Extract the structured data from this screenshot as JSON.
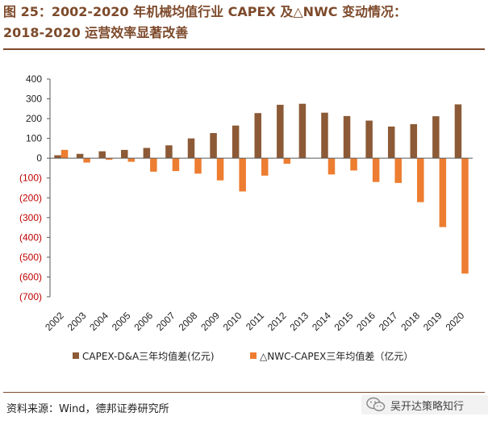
{
  "header": {
    "title_line1": "图 25：2002-2020 年机械均值行业 CAPEX 及△NWC 变动情况：",
    "title_line2": "2018-2020 运营效率显著改善"
  },
  "footer": {
    "source": "资料来源：Wind，德邦证券研究所",
    "watermark": "吴开达策略知行"
  },
  "colors": {
    "capex": "#8c5a36",
    "nwc": "#ed7d31",
    "title": "#7d4a2b",
    "tick_negative": "#c00000",
    "axis": "#595959"
  },
  "chart_data": {
    "type": "bar",
    "title": "",
    "xlabel": "",
    "ylabel": "",
    "ylim": [
      -700,
      400
    ],
    "yticks": [
      400,
      300,
      200,
      100,
      0,
      -100,
      -200,
      -300,
      -400,
      -500,
      -600,
      -700
    ],
    "ytick_labels": [
      "400",
      "300",
      "200",
      "100",
      "0",
      "(100)",
      "(200)",
      "(300)",
      "(400)",
      "(500)",
      "(600)",
      "(700)"
    ],
    "categories": [
      "2002",
      "2003",
      "2004",
      "2005",
      "2006",
      "2007",
      "2008",
      "2009",
      "2010",
      "2011",
      "2012",
      "2013",
      "2014",
      "2015",
      "2016",
      "2017",
      "2018",
      "2019",
      "2020"
    ],
    "series": [
      {
        "name": "CAPEX-D&A三年均值差(亿元)",
        "values": [
          15,
          22,
          35,
          42,
          52,
          65,
          100,
          127,
          165,
          228,
          270,
          275,
          230,
          213,
          190,
          160,
          172,
          212,
          272
        ]
      },
      {
        "name": "△NWC-CAPEX三年均值差（亿元）",
        "values": [
          42,
          -22,
          -8,
          -18,
          -68,
          -65,
          -78,
          -112,
          -168,
          -88,
          -28,
          0,
          -82,
          -62,
          -120,
          -125,
          -222,
          -348,
          -583
        ]
      }
    ],
    "legend_position": "bottom",
    "grid": false
  }
}
